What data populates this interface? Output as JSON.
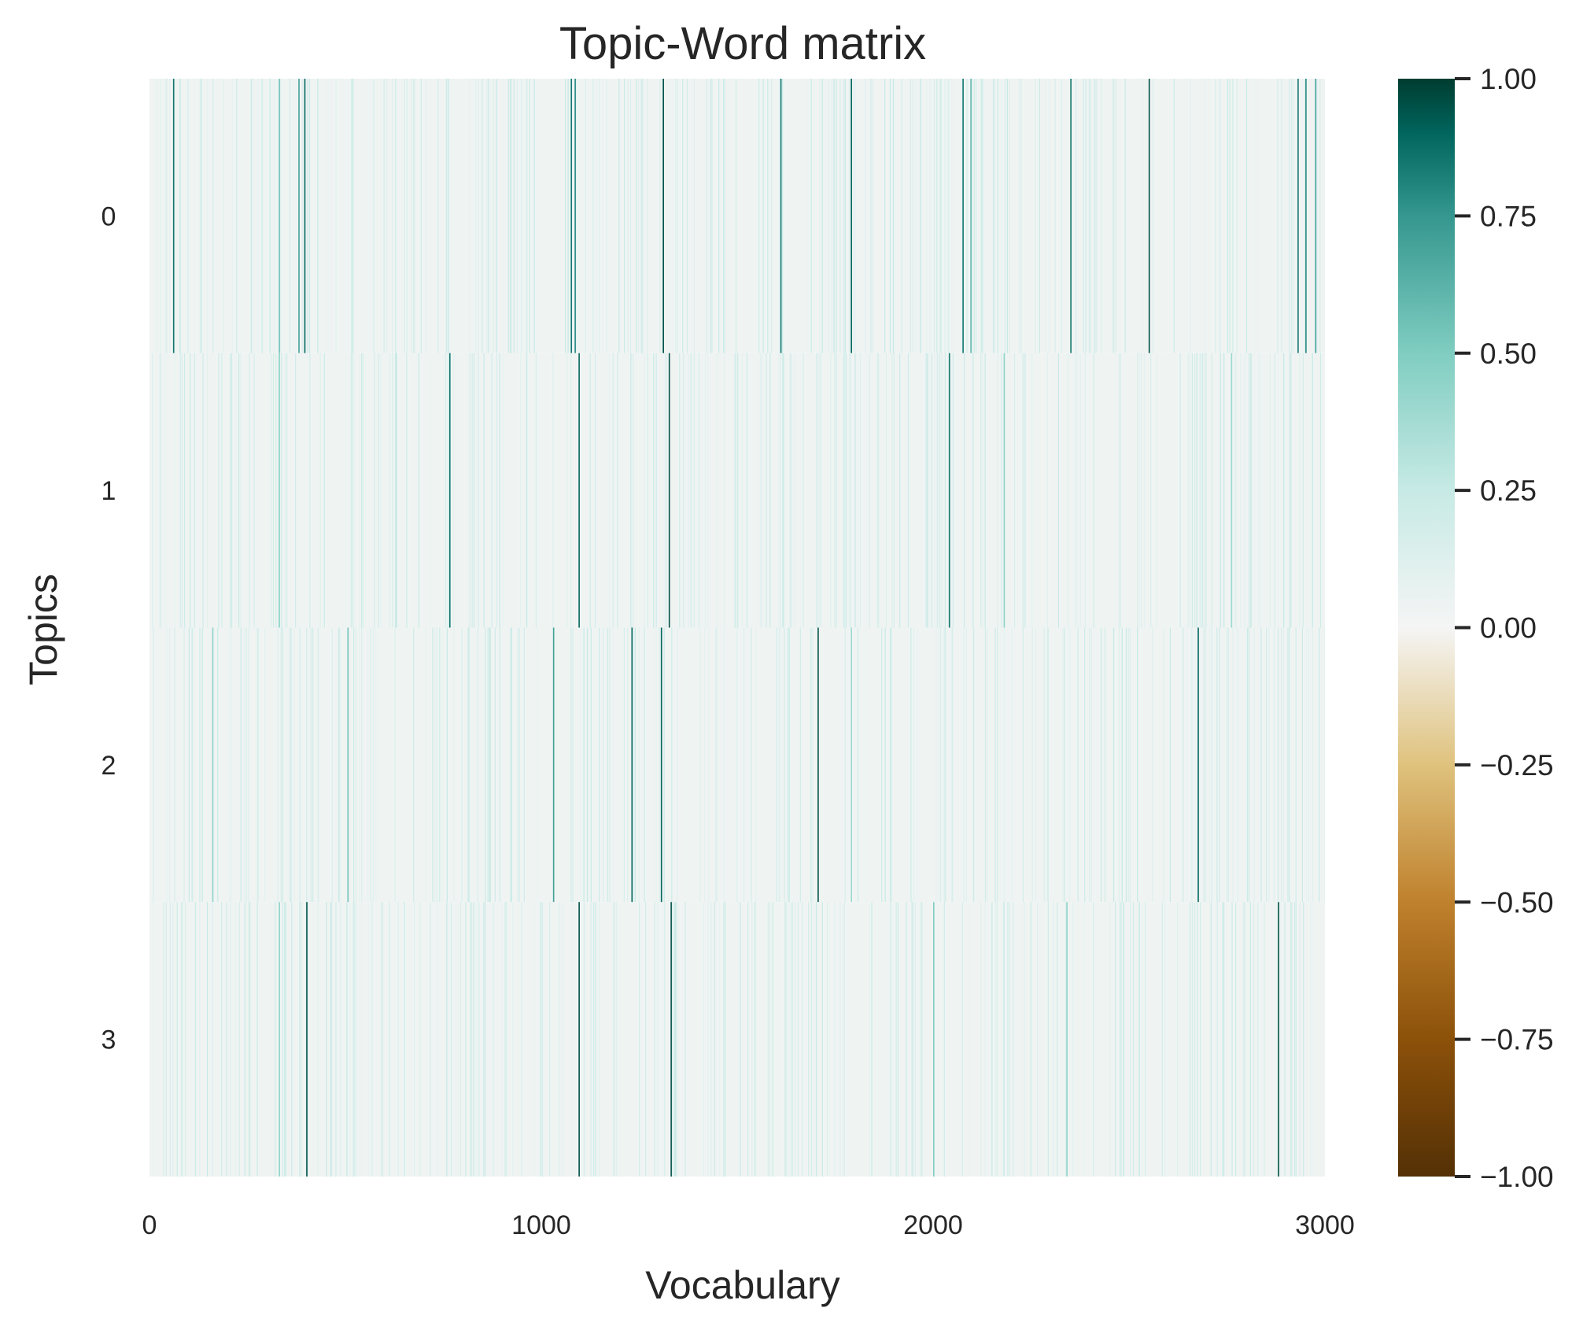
{
  "chart_data": {
    "type": "heatmap",
    "title": "Topic-Word matrix",
    "xlabel": "Vocabulary",
    "ylabel": "Topics",
    "x_range": [
      0,
      3000
    ],
    "x_ticks": [
      "0",
      "1000",
      "2000",
      "3000"
    ],
    "rows": [
      "0",
      "1",
      "2",
      "3"
    ],
    "vocabulary_size": 3000,
    "colormap": "BrBG",
    "color_scale": {
      "min": -1.0,
      "max": 1.0,
      "ticks": [
        "1.00",
        "0.75",
        "0.50",
        "0.25",
        "0.00",
        "−0.25",
        "−0.50",
        "−0.75",
        "−1.00"
      ],
      "stops": [
        {
          "value": -1.0,
          "color": "#543005"
        },
        {
          "value": -0.75,
          "color": "#8c510a"
        },
        {
          "value": -0.5,
          "color": "#bf812d"
        },
        {
          "value": -0.25,
          "color": "#dfc27d"
        },
        {
          "value": 0.0,
          "color": "#f5f5f5"
        },
        {
          "value": 0.25,
          "color": "#c7eae5"
        },
        {
          "value": 0.5,
          "color": "#80cdc1"
        },
        {
          "value": 0.75,
          "color": "#35978f"
        },
        {
          "value": 0.9,
          "color": "#01665e"
        },
        {
          "value": 1.0,
          "color": "#003c30"
        }
      ]
    },
    "background_value": 0.03,
    "grid": false,
    "legend": "colorbar-right",
    "strong_weights": [
      {
        "topic": 0,
        "words": [
          {
            "index": 60,
            "value": 0.85
          },
          {
            "index": 330,
            "value": 0.55
          },
          {
            "index": 380,
            "value": 0.7
          },
          {
            "index": 395,
            "value": 0.9
          },
          {
            "index": 1075,
            "value": 0.85
          },
          {
            "index": 1085,
            "value": 0.8
          },
          {
            "index": 1310,
            "value": 0.95
          },
          {
            "index": 1610,
            "value": 0.85
          },
          {
            "index": 1790,
            "value": 0.9
          },
          {
            "index": 2075,
            "value": 0.85
          },
          {
            "index": 2095,
            "value": 0.6
          },
          {
            "index": 2350,
            "value": 0.85
          },
          {
            "index": 2550,
            "value": 0.95
          },
          {
            "index": 2930,
            "value": 0.85
          },
          {
            "index": 2950,
            "value": 0.8
          },
          {
            "index": 2975,
            "value": 0.7
          }
        ]
      },
      {
        "topic": 1,
        "words": [
          {
            "index": 330,
            "value": 0.45
          },
          {
            "index": 765,
            "value": 0.85
          },
          {
            "index": 1095,
            "value": 0.9
          },
          {
            "index": 1325,
            "value": 0.95
          },
          {
            "index": 2040,
            "value": 0.85
          },
          {
            "index": 2180,
            "value": 0.45
          },
          {
            "index": 2760,
            "value": 0.4
          }
        ]
      },
      {
        "topic": 2,
        "words": [
          {
            "index": 160,
            "value": 0.45
          },
          {
            "index": 505,
            "value": 0.55
          },
          {
            "index": 1030,
            "value": 0.7
          },
          {
            "index": 1230,
            "value": 0.9
          },
          {
            "index": 1305,
            "value": 0.9
          },
          {
            "index": 1705,
            "value": 0.95
          },
          {
            "index": 1790,
            "value": 0.4
          },
          {
            "index": 2675,
            "value": 0.9
          }
        ]
      },
      {
        "topic": 3,
        "words": [
          {
            "index": 330,
            "value": 0.45
          },
          {
            "index": 400,
            "value": 0.95
          },
          {
            "index": 1095,
            "value": 0.95
          },
          {
            "index": 1330,
            "value": 0.95
          },
          {
            "index": 2000,
            "value": 0.5
          },
          {
            "index": 2340,
            "value": 0.45
          },
          {
            "index": 2880,
            "value": 0.95
          }
        ]
      }
    ]
  }
}
